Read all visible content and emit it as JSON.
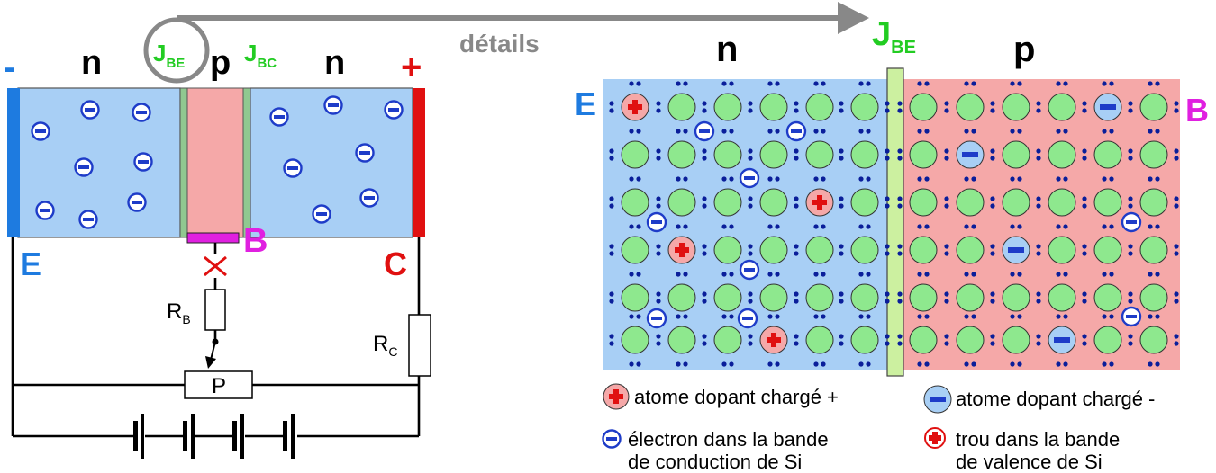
{
  "colors": {
    "n_region": "#a8cff5",
    "p_region": "#f5a8a8",
    "junction": "#90c890",
    "emitter_contact": "#1e7be0",
    "collector_contact": "#e01010",
    "base_contact": "#e020e0",
    "atom_si": "#8ee88e",
    "electron_dot": "#0a1e9a",
    "minus_sign": "#1e3cc8",
    "plus_sign": "#e01010",
    "label_green": "#22cc22",
    "label_blue": "#1e7be0",
    "label_red": "#e01010",
    "label_magenta": "#e020e0",
    "arrow_gray": "#888888"
  },
  "left": {
    "minus_sign": "-",
    "plus_sign": "+",
    "n1": "n",
    "p": "p",
    "n2": "n",
    "jbe_main": "J",
    "jbe_sub": "BE",
    "jbc_main": "J",
    "jbc_sub": "BC",
    "label_b": "B",
    "label_e": "E",
    "label_c": "C",
    "rb_main": "R",
    "rb_sub": "B",
    "rc_main": "R",
    "rc_sub": "C",
    "potentiometer": "P"
  },
  "arrow_label": "détails",
  "right": {
    "n": "n",
    "p": "p",
    "jbe_main": "J",
    "jbe_sub": "BE",
    "label_e": "E",
    "label_b": "B"
  },
  "legend": {
    "donor": "atome dopant chargé +",
    "acceptor": "atome dopant chargé -",
    "electron_l1": "électron dans la bande",
    "electron_l2": "de conduction de Si",
    "hole_l1": "trou dans la bande",
    "hole_l2": "de valence de Si"
  }
}
